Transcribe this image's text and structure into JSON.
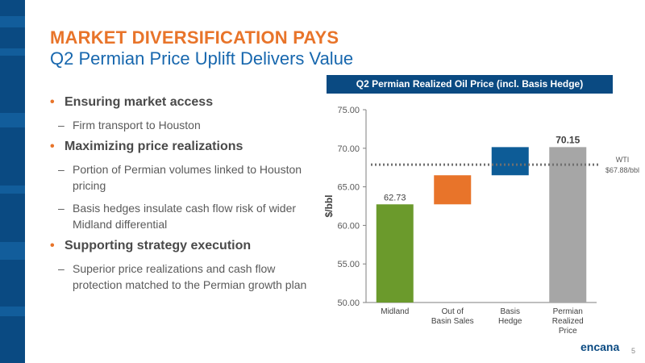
{
  "slide": {
    "title": "MARKET DIVERSIFICATION PAYS",
    "subtitle": "Q2 Permian Price Uplift Delivers Value",
    "page_number": "5",
    "logo_text": "encana"
  },
  "bullets": [
    {
      "text": "Ensuring market access",
      "subs": [
        "Firm transport to Houston"
      ]
    },
    {
      "text": "Maximizing price realizations",
      "subs": [
        "Portion of Permian volumes linked to Houston pricing",
        "Basis hedges insulate cash flow risk of wider Midland differential"
      ]
    },
    {
      "text": "Supporting strategy execution",
      "subs": [
        "Superior price realizations and cash flow protection matched to the Permian growth plan"
      ]
    }
  ],
  "chart_data": {
    "type": "bar",
    "subtype": "waterfall",
    "title": "Q2 Permian Realized Oil Price (incl. Basis Hedge)",
    "ylabel": "$/bbl",
    "xlabel": "",
    "ylim": [
      50,
      75
    ],
    "yticks": [
      "50.00",
      "55.00",
      "60.00",
      "65.00",
      "70.00",
      "75.00"
    ],
    "bars": [
      {
        "category_lines": [
          "Midland"
        ],
        "start": 50,
        "end": 62.73,
        "label": "62.73",
        "color": "#6b9a2c"
      },
      {
        "category_lines": [
          "Out of",
          "Basin Sales"
        ],
        "start": 62.73,
        "end": 66.5,
        "label": "",
        "color": "#e8742a"
      },
      {
        "category_lines": [
          "Basis",
          "Hedge"
        ],
        "start": 66.5,
        "end": 70.15,
        "label": "",
        "color": "#0d5c97"
      },
      {
        "category_lines": [
          "Permian",
          "Realized",
          "Price"
        ],
        "start": 50,
        "end": 70.15,
        "label": "70.15",
        "color": "#a6a6a6"
      }
    ],
    "reference_line": {
      "value": 67.88,
      "label_lines": [
        "WTI",
        "$67.88/bbl"
      ],
      "color": "#707070"
    },
    "grid": false
  }
}
